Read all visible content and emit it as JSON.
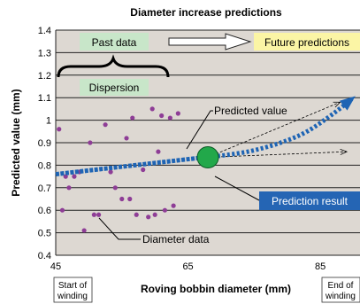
{
  "chart_data": {
    "type": "scatter",
    "title": "Diameter increase predictions",
    "xlabel": "Roving bobbin diameter (mm)",
    "ylabel": "Predicted value (mm)",
    "xlim": [
      45,
      91
    ],
    "ylim": [
      0.4,
      1.4
    ],
    "x_ticks": [
      45,
      65,
      85
    ],
    "y_ticks": [
      0.4,
      0.5,
      0.6,
      0.7,
      0.8,
      0.9,
      1,
      1.1,
      1.2,
      1.3,
      1.4
    ],
    "grid": "horizontal",
    "x_axis_notes": {
      "start": [
        "Start of",
        "winding"
      ],
      "end": [
        "End of",
        "winding"
      ]
    },
    "annotations": {
      "past_data": "Past data",
      "future_predictions": "Future predictions",
      "dispersion": "Dispersion",
      "predicted_value": "Predicted value",
      "prediction_result": "Prediction result",
      "diameter_data": "Diameter data"
    },
    "series": [
      {
        "name": "Diameter data",
        "color": "#8e3d96",
        "points": [
          [
            45.5,
            0.96
          ],
          [
            46.0,
            0.6
          ],
          [
            46.5,
            0.75
          ],
          [
            47.0,
            0.7
          ],
          [
            47.8,
            0.75
          ],
          [
            48.6,
            0.77
          ],
          [
            49.3,
            0.51
          ],
          [
            50.2,
            0.9
          ],
          [
            50.8,
            0.58
          ],
          [
            51.5,
            0.58
          ],
          [
            52.5,
            0.98
          ],
          [
            53.3,
            0.77
          ],
          [
            54.0,
            0.7
          ],
          [
            55.0,
            0.65
          ],
          [
            55.7,
            0.92
          ],
          [
            56.2,
            0.65
          ],
          [
            56.6,
            1.01
          ],
          [
            57.2,
            0.58
          ],
          [
            58.2,
            0.78
          ],
          [
            59.0,
            0.57
          ],
          [
            59.6,
            1.05
          ],
          [
            60.0,
            0.58
          ],
          [
            60.5,
            0.86
          ],
          [
            61.0,
            1.02
          ],
          [
            61.5,
            0.6
          ],
          [
            62.3,
            1.01
          ],
          [
            62.8,
            0.62
          ],
          [
            63.5,
            1.03
          ]
        ]
      },
      {
        "name": "Past prediction",
        "color": "#1e64b4",
        "points": [
          [
            45,
            0.76
          ],
          [
            48,
            0.77
          ],
          [
            51,
            0.78
          ],
          [
            54,
            0.79
          ],
          [
            57,
            0.8
          ],
          [
            60,
            0.81
          ],
          [
            63,
            0.82
          ],
          [
            66,
            0.83
          ],
          [
            68,
            0.835
          ]
        ]
      },
      {
        "name": "Future prediction",
        "color": "#1e64b4",
        "points": [
          [
            68,
            0.835
          ],
          [
            74,
            0.86
          ],
          [
            79,
            0.9
          ],
          [
            83,
            0.95
          ],
          [
            87,
            1.03
          ],
          [
            90,
            1.1
          ]
        ]
      },
      {
        "name": "Upper bound",
        "color": "#000000",
        "points": [
          [
            68,
            0.835
          ],
          [
            88,
            1.08
          ]
        ]
      },
      {
        "name": "Lower bound",
        "color": "#000000",
        "points": [
          [
            68,
            0.835
          ],
          [
            89,
            0.86
          ]
        ]
      }
    ],
    "predicted_point": {
      "x": 68,
      "y": 0.835,
      "color": "#22a84a"
    },
    "colors": {
      "plot_bg": "#ddd8d2",
      "label_green": "#c8e6c9",
      "label_yellow": "#fbf5a5",
      "label_blue": "#2565b4"
    }
  }
}
